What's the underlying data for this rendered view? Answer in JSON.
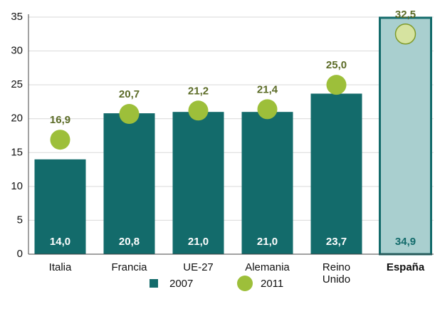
{
  "chart_data": {
    "type": "bar",
    "categories": [
      "Italia",
      "Francia",
      "UE-27",
      "Alemania",
      "Reino Unido",
      "España"
    ],
    "series": [
      {
        "name": "2007",
        "color": "#136b6b",
        "marker": "bar",
        "values": [
          14.0,
          20.8,
          21.0,
          21.0,
          23.7,
          34.9
        ],
        "value_labels": [
          "14,0",
          "20,8",
          "21,0",
          "21,0",
          "23,7",
          "34,9"
        ]
      },
      {
        "name": "2011",
        "color": "#9dbf3a",
        "marker": "circle",
        "values": [
          16.9,
          20.7,
          21.2,
          21.4,
          25.0,
          32.5
        ],
        "value_labels": [
          "16,9",
          "20,7",
          "21,2",
          "21,4",
          "25,0",
          "32,5"
        ]
      }
    ],
    "highlight_index": 5,
    "highlight_color": "#a9cfcf",
    "highlight_marker_color": "#d6e3a0",
    "ylim": [
      0,
      35
    ],
    "yticks": [
      0,
      5,
      10,
      15,
      20,
      25,
      30,
      35
    ],
    "grid": true
  }
}
